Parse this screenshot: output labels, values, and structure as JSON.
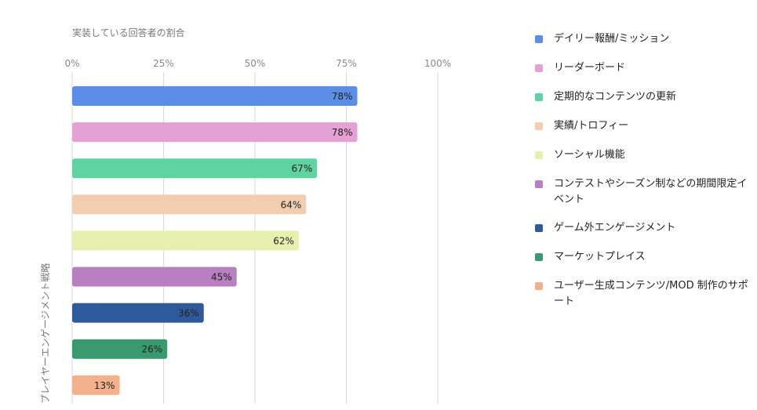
{
  "chart_data": {
    "type": "bar",
    "orientation": "horizontal",
    "xlabel": "実装している回答者の割合",
    "ylabel": "プレイヤーエンゲージメント戦略",
    "xlim": [
      0,
      100
    ],
    "x_ticks": [
      "0%",
      "25%",
      "50%",
      "75%",
      "100%"
    ],
    "grid": true,
    "legend_position": "right",
    "categories": [
      "デイリー報酬/ミッション",
      "リーダーボード",
      "定期的なコンテンツの更新",
      "実績/トロフィー",
      "ソーシャル機能",
      "コンテストやシーズン制などの期間限定イベント",
      "ゲーム外エンゲージメント",
      "マーケットプレイス",
      "ユーザー生成コンテンツ/MOD 制作のサポート"
    ],
    "values": [
      78,
      78,
      67,
      64,
      62,
      45,
      36,
      26,
      13
    ],
    "data_labels": [
      "78%",
      "78%",
      "67%",
      "64%",
      "62%",
      "45%",
      "36%",
      "26%",
      "13%"
    ],
    "colors": [
      "#5b8ee6",
      "#e3a1d4",
      "#5fd3a2",
      "#f2cdb0",
      "#e7f0ae",
      "#b87fc1",
      "#2e5a9c",
      "#3b9970",
      "#f2b18c"
    ]
  }
}
